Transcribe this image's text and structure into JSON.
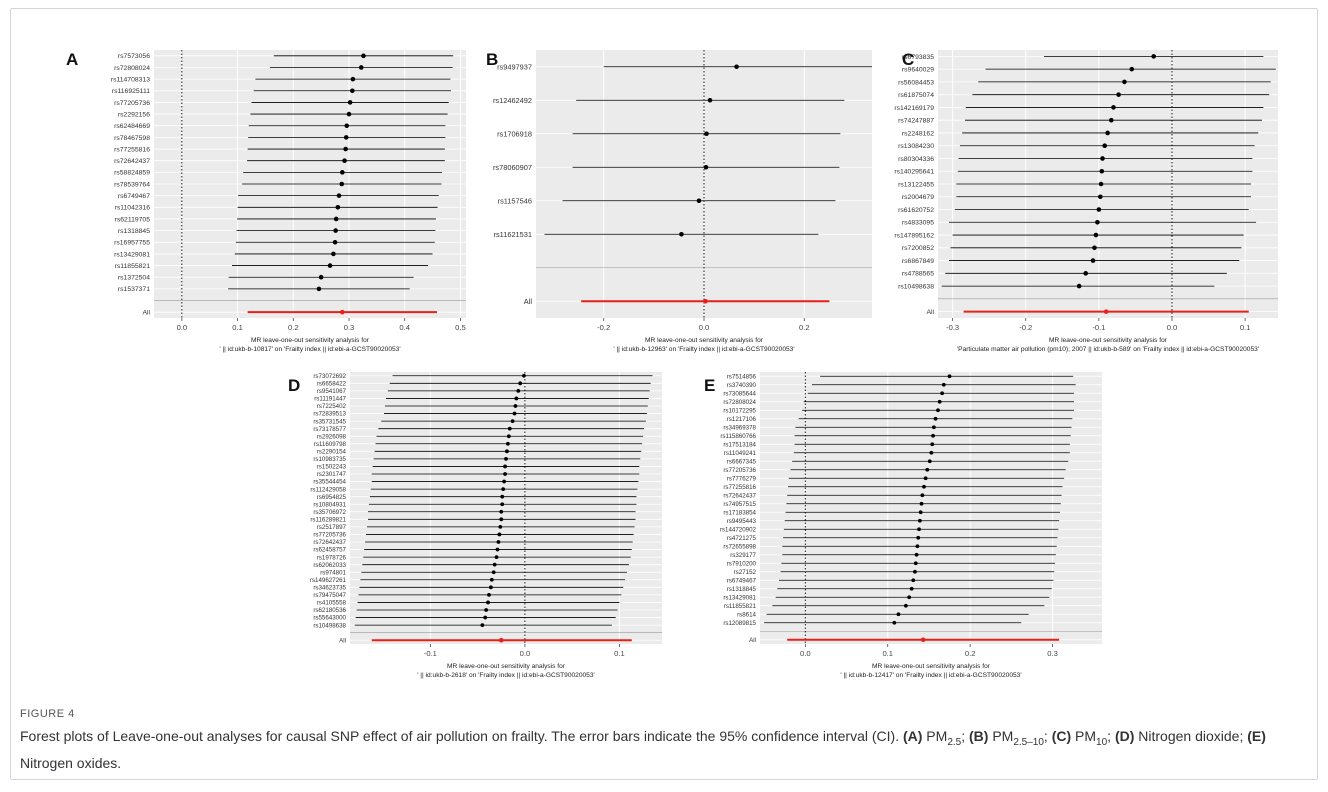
{
  "figure_label": "FIGURE 4",
  "caption": {
    "text": "Forest plots of Leave-one-out analyses for causal SNP effect of air pollution on frailty. The error bars indicate the 95% confidence interval (CI).",
    "items": [
      {
        "tag": "(A)",
        "name": "PM",
        "sub": "2.5",
        "end": ";"
      },
      {
        "tag": "(B)",
        "name": "PM",
        "sub": "2.5–10",
        "end": ";"
      },
      {
        "tag": "(C)",
        "name": "PM",
        "sub": "10",
        "end": ";"
      },
      {
        "tag": "(D)",
        "name": "Nitrogen dioxide",
        "sub": "",
        "end": ";"
      },
      {
        "tag": "(E)",
        "name": "Nitrogen oxides",
        "sub": "",
        "end": "."
      }
    ]
  },
  "colors": {
    "panel_bg": "#ebebeb",
    "grid": "#ffffff",
    "point": "#000000",
    "all_line": "#e8201a"
  },
  "chart_data": [
    {
      "panel": "A",
      "type": "forest",
      "xlabel": [
        "MR leave-one-out sensitivity analysis for",
        "' || id:ukb-b-10817' on 'Frailty index || id:ebi-a-GCST90020053'"
      ],
      "xlim": [
        -0.05,
        0.51
      ],
      "xticks": [
        0.0,
        0.1,
        0.2,
        0.3,
        0.4,
        0.5
      ],
      "rows": [
        {
          "snp": "rs7573056",
          "est": 0.326,
          "lo": 0.165,
          "hi": 0.487
        },
        {
          "snp": "rs72808024",
          "est": 0.322,
          "lo": 0.158,
          "hi": 0.486
        },
        {
          "snp": "rs114708313",
          "est": 0.307,
          "lo": 0.132,
          "hi": 0.482
        },
        {
          "snp": "rs116925111",
          "est": 0.306,
          "lo": 0.129,
          "hi": 0.483
        },
        {
          "snp": "rs77205736",
          "est": 0.302,
          "lo": 0.125,
          "hi": 0.479
        },
        {
          "snp": "rs2292156",
          "est": 0.3,
          "lo": 0.123,
          "hi": 0.477
        },
        {
          "snp": "rs62484669",
          "est": 0.296,
          "lo": 0.12,
          "hi": 0.473
        },
        {
          "snp": "rs78467598",
          "est": 0.295,
          "lo": 0.119,
          "hi": 0.473
        },
        {
          "snp": "rs77255816",
          "est": 0.294,
          "lo": 0.118,
          "hi": 0.472
        },
        {
          "snp": "rs72642437",
          "est": 0.292,
          "lo": 0.117,
          "hi": 0.472
        },
        {
          "snp": "rs58824859",
          "est": 0.288,
          "lo": 0.11,
          "hi": 0.467
        },
        {
          "snp": "rs78539764",
          "est": 0.287,
          "lo": 0.108,
          "hi": 0.466
        },
        {
          "snp": "rs6749467",
          "est": 0.282,
          "lo": 0.101,
          "hi": 0.461
        },
        {
          "snp": "rs11042316",
          "est": 0.28,
          "lo": 0.1,
          "hi": 0.459
        },
        {
          "snp": "rs62119705",
          "est": 0.277,
          "lo": 0.099,
          "hi": 0.456
        },
        {
          "snp": "rs1318845",
          "est": 0.276,
          "lo": 0.098,
          "hi": 0.455
        },
        {
          "snp": "rs16957755",
          "est": 0.275,
          "lo": 0.097,
          "hi": 0.454
        },
        {
          "snp": "rs13429081",
          "est": 0.272,
          "lo": 0.095,
          "hi": 0.45
        },
        {
          "snp": "rs11855821",
          "est": 0.266,
          "lo": 0.09,
          "hi": 0.442
        },
        {
          "snp": "rs1372504",
          "est": 0.25,
          "lo": 0.084,
          "hi": 0.416
        },
        {
          "snp": "rs1537371",
          "est": 0.246,
          "lo": 0.083,
          "hi": 0.409
        }
      ],
      "all": {
        "label": "All",
        "est": 0.288,
        "lo": 0.118,
        "hi": 0.458
      }
    },
    {
      "panel": "B",
      "type": "forest",
      "xlabel": [
        "MR leave-one-out sensitivity analysis for",
        "' || id:ukb-b-12963' on 'Frailty index || id:ebi-a-GCST90020053'"
      ],
      "xlim": [
        -0.335,
        0.335
      ],
      "xticks": [
        -0.2,
        0.0,
        0.2
      ],
      "rows": [
        {
          "snp": "rs9497937",
          "est": 0.065,
          "lo": -0.2,
          "hi": 0.335
        },
        {
          "snp": "rs12462492",
          "est": 0.012,
          "lo": -0.255,
          "hi": 0.28
        },
        {
          "snp": "rs1706918",
          "est": 0.005,
          "lo": -0.262,
          "hi": 0.272
        },
        {
          "snp": "rs78060907",
          "est": 0.004,
          "lo": -0.262,
          "hi": 0.27
        },
        {
          "snp": "rs1157546",
          "est": -0.01,
          "lo": -0.282,
          "hi": 0.262
        },
        {
          "snp": "rs11621531",
          "est": -0.045,
          "lo": -0.318,
          "hi": 0.228
        }
      ],
      "all": {
        "label": "All",
        "est": 0.003,
        "lo": -0.245,
        "hi": 0.25
      }
    },
    {
      "panel": "C",
      "type": "forest",
      "xlabel": [
        "MR leave-one-out sensitivity analysis for",
        "'Particulate matter air pollution (pm10); 2007 || id:ukb-b-589' on 'Frailty index || id:ebi-a-GCST90020053'"
      ],
      "xlim": [
        -0.32,
        0.145
      ],
      "xticks": [
        -0.3,
        -0.2,
        -0.1,
        0.0,
        0.1
      ],
      "rows": [
        {
          "snp": "rs6793835",
          "est": -0.025,
          "lo": -0.175,
          "hi": 0.125
        },
        {
          "snp": "rs9640029",
          "est": -0.055,
          "lo": -0.255,
          "hi": 0.142
        },
        {
          "snp": "rs56084453",
          "est": -0.065,
          "lo": -0.265,
          "hi": 0.135
        },
        {
          "snp": "rs61875074",
          "est": -0.073,
          "lo": -0.273,
          "hi": 0.133
        },
        {
          "snp": "rs142169179",
          "est": -0.08,
          "lo": -0.282,
          "hi": 0.125
        },
        {
          "snp": "rs74247887",
          "est": -0.083,
          "lo": -0.283,
          "hi": 0.123
        },
        {
          "snp": "rs2248162",
          "est": -0.088,
          "lo": -0.287,
          "hi": 0.118
        },
        {
          "snp": "rs13084230",
          "est": -0.092,
          "lo": -0.29,
          "hi": 0.113
        },
        {
          "snp": "rs80304336",
          "est": -0.095,
          "lo": -0.292,
          "hi": 0.11
        },
        {
          "snp": "rs140295641",
          "est": -0.096,
          "lo": -0.293,
          "hi": 0.11
        },
        {
          "snp": "rs13122455",
          "est": -0.097,
          "lo": -0.295,
          "hi": 0.108
        },
        {
          "snp": "rs2004679",
          "est": -0.098,
          "lo": -0.295,
          "hi": 0.108
        },
        {
          "snp": "rs61620752",
          "est": -0.1,
          "lo": -0.297,
          "hi": 0.105
        },
        {
          "snp": "rs4833095",
          "est": -0.102,
          "lo": -0.305,
          "hi": 0.115
        },
        {
          "snp": "rs147895162",
          "est": -0.104,
          "lo": -0.3,
          "hi": 0.098
        },
        {
          "snp": "rs7200852",
          "est": -0.106,
          "lo": -0.303,
          "hi": 0.095
        },
        {
          "snp": "rs6867849",
          "est": -0.108,
          "lo": -0.305,
          "hi": 0.092
        },
        {
          "snp": "rs4788565",
          "est": -0.118,
          "lo": -0.31,
          "hi": 0.075
        },
        {
          "snp": "rs10498638",
          "est": -0.127,
          "lo": -0.315,
          "hi": 0.058
        }
      ],
      "all": {
        "label": "All",
        "est": -0.09,
        "lo": -0.285,
        "hi": 0.105
      }
    },
    {
      "panel": "D",
      "type": "forest",
      "xlabel": [
        "MR leave-one-out sensitivity analysis for",
        "' || id:ukb-b-2618' on 'Frailty index || id:ebi-a-GCST90020053'"
      ],
      "xlim": [
        -0.185,
        0.145
      ],
      "xticks": [
        -0.1,
        0.0,
        0.1
      ],
      "rows": [
        {
          "snp": "rs73072692",
          "est": -0.001,
          "lo": -0.14,
          "hi": 0.135
        },
        {
          "snp": "rs6658422",
          "est": -0.005,
          "lo": -0.143,
          "hi": 0.133
        },
        {
          "snp": "rs9541067",
          "est": -0.007,
          "lo": -0.145,
          "hi": 0.132
        },
        {
          "snp": "rs11191447",
          "est": -0.009,
          "lo": -0.147,
          "hi": 0.131
        },
        {
          "snp": "rs7225402",
          "est": -0.01,
          "lo": -0.148,
          "hi": 0.13
        },
        {
          "snp": "rs72839513",
          "est": -0.011,
          "lo": -0.149,
          "hi": 0.129
        },
        {
          "snp": "rs35731545",
          "est": -0.013,
          "lo": -0.152,
          "hi": 0.128
        },
        {
          "snp": "rs73178577",
          "est": -0.016,
          "lo": -0.155,
          "hi": 0.126
        },
        {
          "snp": "rs2926098",
          "est": -0.017,
          "lo": -0.157,
          "hi": 0.125
        },
        {
          "snp": "rs11609798",
          "est": -0.018,
          "lo": -0.158,
          "hi": 0.124
        },
        {
          "snp": "rs2290154",
          "est": -0.019,
          "lo": -0.159,
          "hi": 0.123
        },
        {
          "snp": "rs10983735",
          "est": -0.02,
          "lo": -0.16,
          "hi": 0.122
        },
        {
          "snp": "rs1502243",
          "est": -0.021,
          "lo": -0.161,
          "hi": 0.121
        },
        {
          "snp": "rs2301747",
          "est": -0.021,
          "lo": -0.162,
          "hi": 0.121
        },
        {
          "snp": "rs35544454",
          "est": -0.022,
          "lo": -0.162,
          "hi": 0.12
        },
        {
          "snp": "rs112429058",
          "est": -0.023,
          "lo": -0.163,
          "hi": 0.119
        },
        {
          "snp": "rs6954825",
          "est": -0.024,
          "lo": -0.164,
          "hi": 0.118
        },
        {
          "snp": "rs10804931",
          "est": -0.024,
          "lo": -0.165,
          "hi": 0.118
        },
        {
          "snp": "rs35706972",
          "est": -0.025,
          "lo": -0.166,
          "hi": 0.117
        },
        {
          "snp": "rs116289821",
          "est": -0.025,
          "lo": -0.166,
          "hi": 0.117
        },
        {
          "snp": "rs2517897",
          "est": -0.026,
          "lo": -0.167,
          "hi": 0.116
        },
        {
          "snp": "rs77205736",
          "est": -0.027,
          "lo": -0.168,
          "hi": 0.115
        },
        {
          "snp": "rs72642437",
          "est": -0.028,
          "lo": -0.169,
          "hi": 0.114
        },
        {
          "snp": "rs62458757",
          "est": -0.029,
          "lo": -0.17,
          "hi": 0.113
        },
        {
          "snp": "rs1978726",
          "est": -0.03,
          "lo": -0.171,
          "hi": 0.112
        },
        {
          "snp": "rs62062033",
          "est": -0.032,
          "lo": -0.172,
          "hi": 0.11
        },
        {
          "snp": "rs974801",
          "est": -0.033,
          "lo": -0.173,
          "hi": 0.108
        },
        {
          "snp": "rs149627261",
          "est": -0.035,
          "lo": -0.174,
          "hi": 0.106
        },
        {
          "snp": "rs34623735",
          "est": -0.036,
          "lo": -0.175,
          "hi": 0.104
        },
        {
          "snp": "rs79475047",
          "est": -0.038,
          "lo": -0.176,
          "hi": 0.102
        },
        {
          "snp": "rs4105558",
          "est": -0.039,
          "lo": -0.177,
          "hi": 0.1
        },
        {
          "snp": "rs62180536",
          "est": -0.041,
          "lo": -0.178,
          "hi": 0.098
        },
        {
          "snp": "rs55643000",
          "est": -0.042,
          "lo": -0.179,
          "hi": 0.096
        },
        {
          "snp": "rs10498638",
          "est": -0.045,
          "lo": -0.18,
          "hi": 0.092
        }
      ],
      "all": {
        "label": "All",
        "est": -0.025,
        "lo": -0.162,
        "hi": 0.113
      }
    },
    {
      "panel": "E",
      "type": "forest",
      "xlabel": [
        "MR leave-one-out sensitivity analysis for",
        "' || id:ukb-b-12417' on 'Frailty index || id:ebi-a-GCST90020053'"
      ],
      "xlim": [
        -0.055,
        0.36
      ],
      "xticks": [
        0.0,
        0.1,
        0.2,
        0.3
      ],
      "rows": [
        {
          "snp": "rs7514856",
          "est": 0.175,
          "lo": 0.018,
          "hi": 0.325
        },
        {
          "snp": "rs3740390",
          "est": 0.168,
          "lo": 0.008,
          "hi": 0.328
        },
        {
          "snp": "rs73085644",
          "est": 0.166,
          "lo": 0.003,
          "hi": 0.326
        },
        {
          "snp": "rs72808024",
          "est": 0.163,
          "lo": -0.002,
          "hi": 0.326
        },
        {
          "snp": "rs10172295",
          "est": 0.161,
          "lo": -0.004,
          "hi": 0.326
        },
        {
          "snp": "rs1217106",
          "est": 0.158,
          "lo": -0.008,
          "hi": 0.324
        },
        {
          "snp": "rs34969378",
          "est": 0.156,
          "lo": -0.012,
          "hi": 0.323
        },
        {
          "snp": "rs115860766",
          "est": 0.155,
          "lo": -0.013,
          "hi": 0.322
        },
        {
          "snp": "rs17513184",
          "est": 0.154,
          "lo": -0.013,
          "hi": 0.321
        },
        {
          "snp": "rs11049241",
          "est": 0.153,
          "lo": -0.014,
          "hi": 0.321
        },
        {
          "snp": "rs6667345",
          "est": 0.151,
          "lo": -0.016,
          "hi": 0.319
        },
        {
          "snp": "rs77205736",
          "est": 0.148,
          "lo": -0.018,
          "hi": 0.316
        },
        {
          "snp": "rs7776279",
          "est": 0.146,
          "lo": -0.02,
          "hi": 0.314
        },
        {
          "snp": "rs77255816",
          "est": 0.144,
          "lo": -0.021,
          "hi": 0.312
        },
        {
          "snp": "rs72642437",
          "est": 0.142,
          "lo": -0.022,
          "hi": 0.311
        },
        {
          "snp": "rs74957515",
          "est": 0.141,
          "lo": -0.023,
          "hi": 0.31
        },
        {
          "snp": "rs17183854",
          "est": 0.14,
          "lo": -0.024,
          "hi": 0.309
        },
        {
          "snp": "rs9495443",
          "est": 0.139,
          "lo": -0.025,
          "hi": 0.308
        },
        {
          "snp": "rs144720902",
          "est": 0.138,
          "lo": -0.026,
          "hi": 0.307
        },
        {
          "snp": "rs4721275",
          "est": 0.137,
          "lo": -0.027,
          "hi": 0.306
        },
        {
          "snp": "rs72655898",
          "est": 0.136,
          "lo": -0.028,
          "hi": 0.305
        },
        {
          "snp": "rs329177",
          "est": 0.135,
          "lo": -0.028,
          "hi": 0.304
        },
        {
          "snp": "rs7910200",
          "est": 0.134,
          "lo": -0.029,
          "hi": 0.303
        },
        {
          "snp": "rs27152",
          "est": 0.133,
          "lo": -0.03,
          "hi": 0.302
        },
        {
          "snp": "rs6749467",
          "est": 0.131,
          "lo": -0.032,
          "hi": 0.301
        },
        {
          "snp": "rs1318845",
          "est": 0.129,
          "lo": -0.034,
          "hi": 0.299
        },
        {
          "snp": "rs13429081",
          "est": 0.126,
          "lo": -0.036,
          "hi": 0.296
        },
        {
          "snp": "rs11855821",
          "est": 0.122,
          "lo": -0.04,
          "hi": 0.29
        },
        {
          "snp": "rs8614",
          "est": 0.113,
          "lo": -0.047,
          "hi": 0.271
        },
        {
          "snp": "rs12089815",
          "est": 0.108,
          "lo": -0.05,
          "hi": 0.262
        }
      ],
      "all": {
        "label": "All",
        "est": 0.143,
        "lo": -0.022,
        "hi": 0.308
      }
    }
  ]
}
